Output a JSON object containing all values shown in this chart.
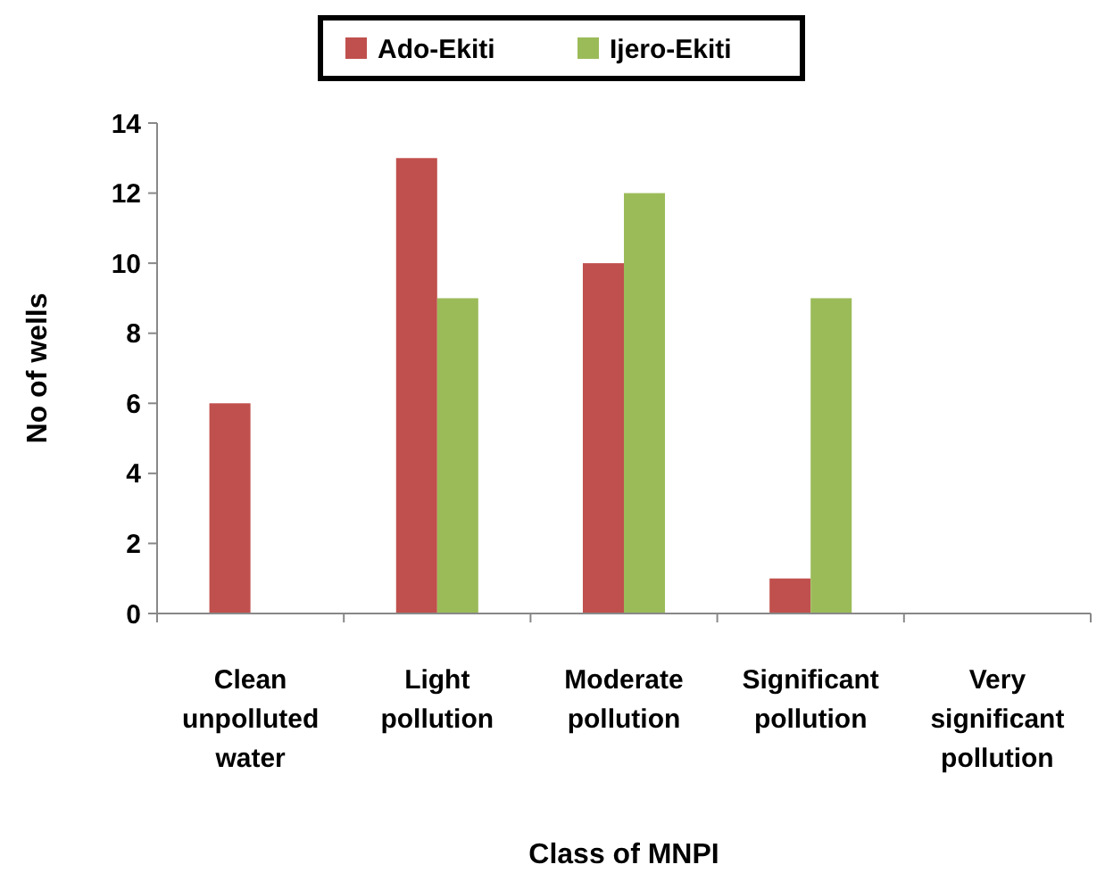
{
  "chart_data": {
    "type": "bar",
    "xlabel": "Class of MNPI",
    "ylabel": "No of wells",
    "categories": [
      "Clean unpolluted water",
      "Light pollution",
      "Moderate pollution",
      "Significant pollution",
      "Very significant pollution"
    ],
    "series": [
      {
        "name": "Ado-Ekiti",
        "color": "#c0504d",
        "values": [
          6,
          13,
          10,
          1,
          0
        ]
      },
      {
        "name": "Ijero-Ekiti",
        "color": "#9bbb59",
        "values": [
          0,
          9,
          12,
          9,
          0
        ]
      }
    ],
    "ylim": [
      0,
      14
    ],
    "yticks": [
      0,
      2,
      4,
      6,
      8,
      10,
      12,
      14
    ],
    "grid": false,
    "legend": "top"
  }
}
